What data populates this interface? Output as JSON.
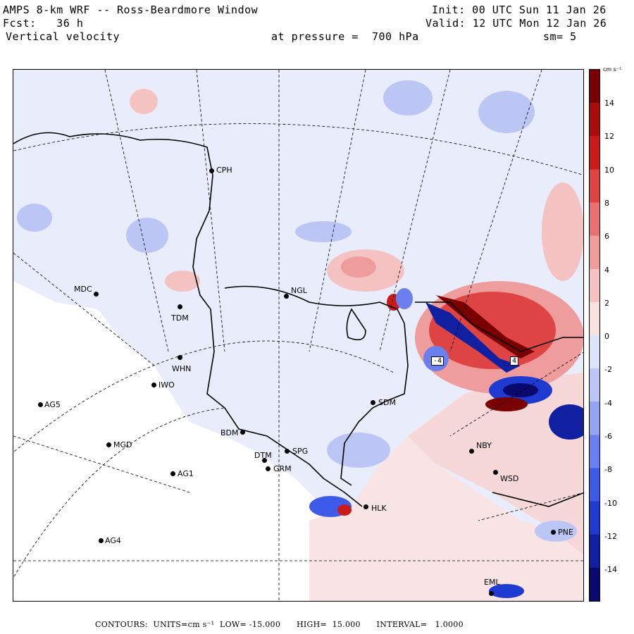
{
  "header": {
    "title": "AMPS 8-km WRF -- Ross-Beardmore Window",
    "forecast": "Fcst:   36 h",
    "variable": "Vertical velocity",
    "init": "Init: 00 UTC Sun 11 Jan 26",
    "valid": "Valid: 12 UTC Mon 12 Jan 26",
    "pressure": "at pressure =  700 hPa",
    "smoothing": "sm= 5"
  },
  "colorbar": {
    "units": "cm s⁻¹",
    "ticks": [
      "14",
      "12",
      "10",
      "8",
      "6",
      "4",
      "2",
      "0",
      "-2",
      "-4",
      "-6",
      "-8",
      "-10",
      "-12",
      "-14"
    ],
    "colors": [
      "#0a0a6e",
      "#1020a0",
      "#1f3ad0",
      "#3e5ae8",
      "#6a80ee",
      "#94a4f0",
      "#bcc6f5",
      "#dde3fa",
      "#f7e1e1",
      "#f5c2c2",
      "#ef9c9c",
      "#e87070",
      "#de4444",
      "#cc1a1a",
      "#a80c0c",
      "#7a0000"
    ]
  },
  "stations": [
    {
      "id": "CPH",
      "label": "CPH"
    },
    {
      "id": "NGL",
      "label": "NGL"
    },
    {
      "id": "MDC",
      "label": "MDC"
    },
    {
      "id": "TDM",
      "label": "TDM"
    },
    {
      "id": "WHN",
      "label": "WHN"
    },
    {
      "id": "IWO",
      "label": "IWO"
    },
    {
      "id": "AG5",
      "label": "AG5"
    },
    {
      "id": "SDM",
      "label": "SDM"
    },
    {
      "id": "BDM",
      "label": "BDM"
    },
    {
      "id": "MGD",
      "label": "MGD"
    },
    {
      "id": "SPG",
      "label": "SPG"
    },
    {
      "id": "DTM",
      "label": "DTM"
    },
    {
      "id": "GRM",
      "label": "GRM"
    },
    {
      "id": "AG1",
      "label": "AG1"
    },
    {
      "id": "NBY",
      "label": "NBY"
    },
    {
      "id": "WSD",
      "label": "WSD"
    },
    {
      "id": "HLK",
      "label": "HLK"
    },
    {
      "id": "AG4",
      "label": "AG4"
    },
    {
      "id": "PNE",
      "label": "PNE"
    },
    {
      "id": "EML",
      "label": "EML"
    }
  ],
  "panel_labels": [
    "-4",
    "4"
  ],
  "footer": {
    "contours_label": "CONTOURS:",
    "units_label": "UNITS=cm s⁻¹",
    "low": "LOW= -15.000",
    "high": "HIGH=  15.000",
    "interval": "INTERVAL=   1.0000"
  }
}
